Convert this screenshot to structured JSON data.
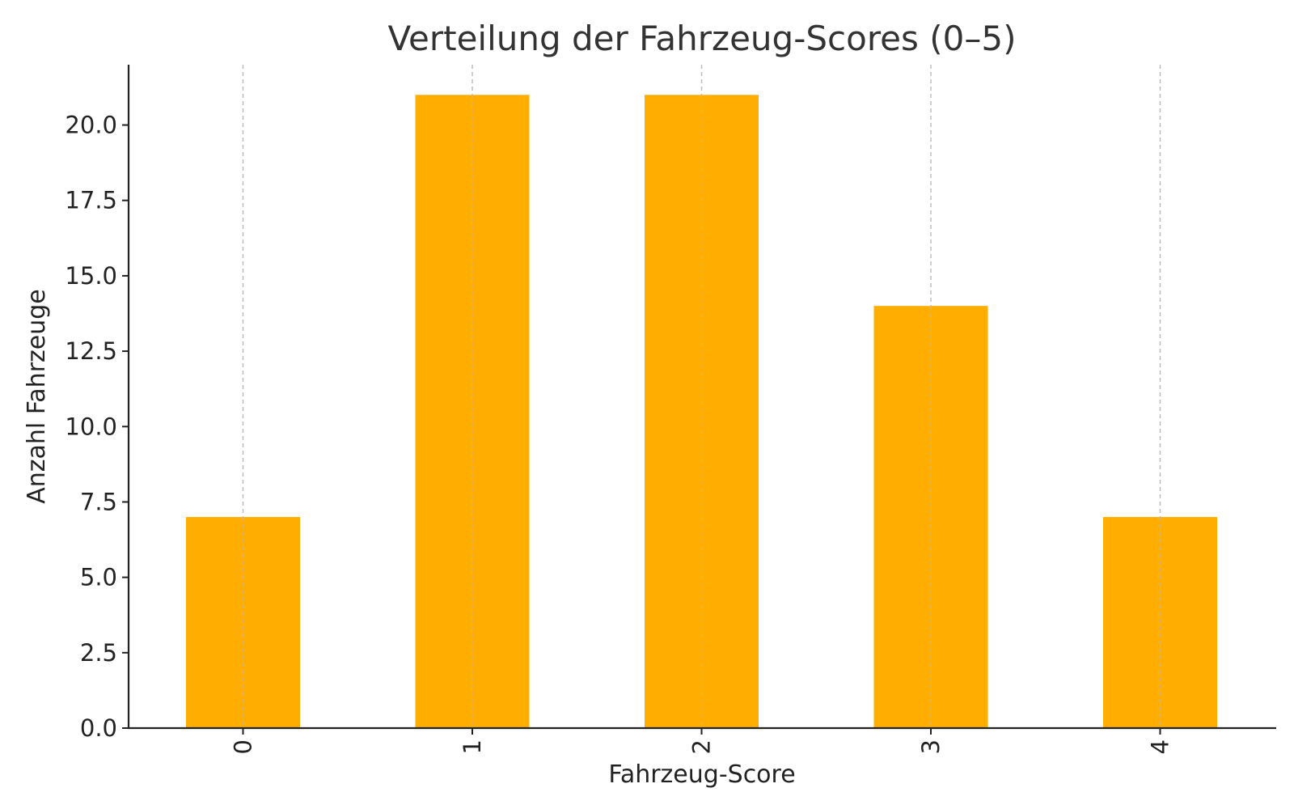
{
  "chart_data": {
    "type": "bar",
    "title": "Verteilung der Fahrzeug-Scores (0–5)",
    "xlabel": "Fahrzeug-Score",
    "ylabel": "Anzahl Fahrzeuge",
    "categories": [
      "0",
      "1",
      "2",
      "3",
      "4"
    ],
    "values": [
      7,
      21,
      21,
      14,
      7
    ],
    "ylim": [
      0,
      22
    ],
    "yticks": [
      "0.0",
      "2.5",
      "5.0",
      "7.5",
      "10.0",
      "12.5",
      "15.0",
      "17.5",
      "20.0"
    ],
    "x_tick_rotation": "vertical",
    "grid": "vertical dashed",
    "legend": "none",
    "bar_color": "#FFAE00"
  }
}
